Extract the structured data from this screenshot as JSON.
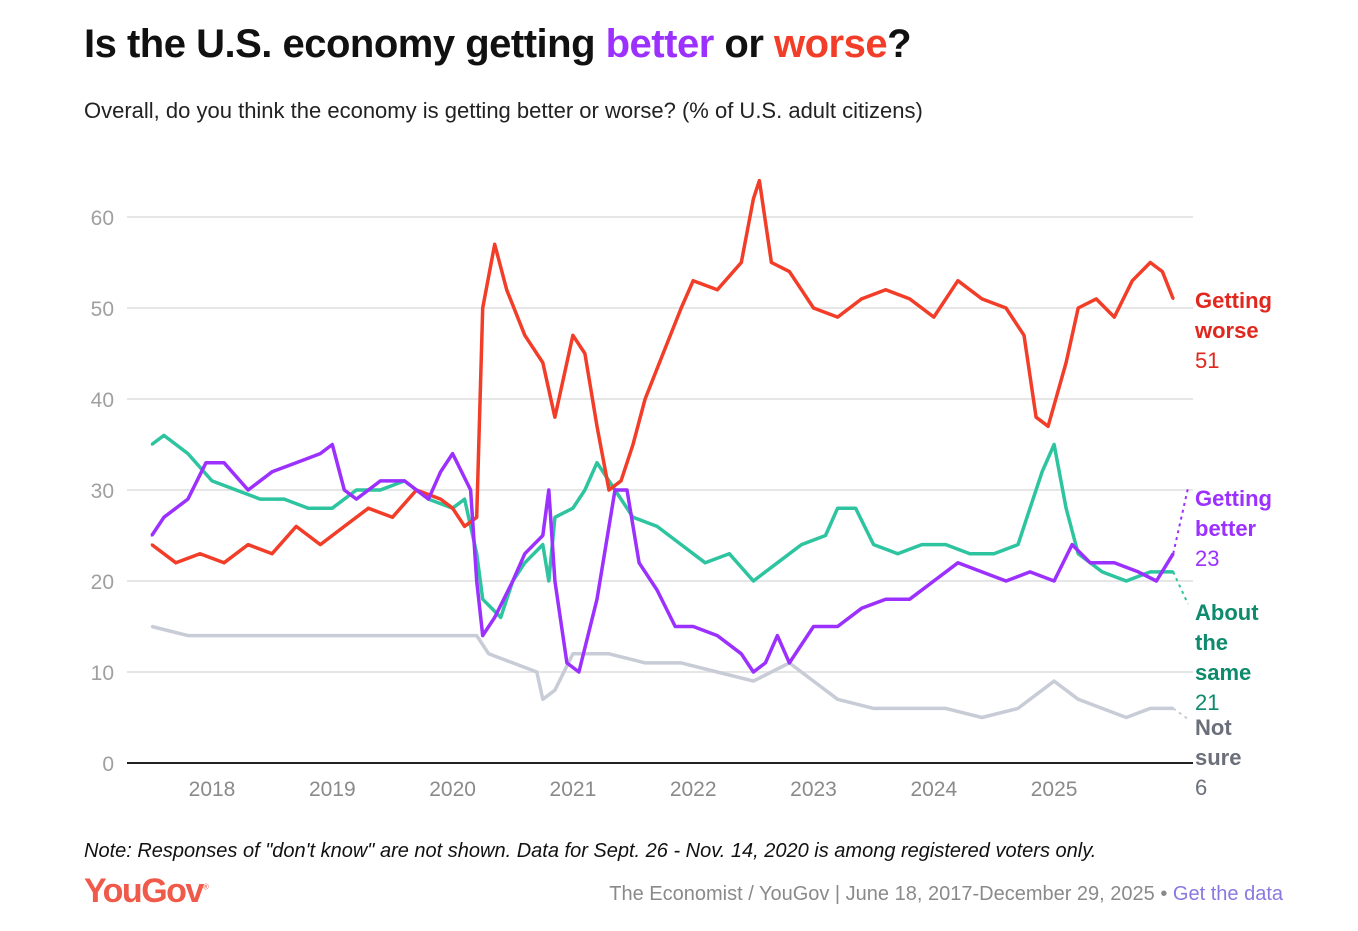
{
  "title": {
    "prefix": "Is the U.S. economy getting ",
    "better": "better",
    "middle": " or ",
    "worse": "worse",
    "suffix": "?"
  },
  "subtitle": "Overall, do you think the economy is getting better or worse? (% of U.S. adult citizens)",
  "note": "Note: Responses of \"don't know\" are not shown. Data for Sept. 26 - Nov. 14, 2020 is among registered voters only.",
  "logo": "YouGov",
  "logo_mark": "®",
  "source": "The Economist / YouGov | June 18, 2017-December 29, 2025",
  "separator": " • ",
  "get_data": "Get the data",
  "chart_data": {
    "type": "line",
    "title": "Is the U.S. economy getting better or worse?",
    "xlabel": "",
    "ylabel": "% of U.S. adult citizens",
    "xlim": [
      2017.46,
      2026.0
    ],
    "ylim": [
      0,
      60
    ],
    "yticks": [
      0,
      10,
      20,
      30,
      40,
      50,
      60
    ],
    "ytick_labels": [
      "0",
      "10",
      "20",
      "30",
      "40",
      "50",
      "60"
    ],
    "xticks": [
      2018,
      2019,
      2020,
      2021,
      2022,
      2023,
      2024,
      2025
    ],
    "xtick_labels": [
      "2018",
      "2019",
      "2020",
      "2021",
      "2022",
      "2023",
      "2024",
      "2025"
    ],
    "grid": true,
    "legend": "right-end-labels",
    "series": [
      {
        "name": "Getting worse",
        "label_line1": "Getting",
        "label_line2": "worse",
        "last": "51",
        "color": "#f23d28",
        "label_color": "#e0281e",
        "x": [
          2017.5,
          2017.7,
          2017.9,
          2018.1,
          2018.3,
          2018.5,
          2018.7,
          2018.9,
          2019.1,
          2019.3,
          2019.5,
          2019.7,
          2019.9,
          2020.0,
          2020.1,
          2020.2,
          2020.25,
          2020.35,
          2020.45,
          2020.6,
          2020.75,
          2020.85,
          2021.0,
          2021.1,
          2021.2,
          2021.3,
          2021.4,
          2021.5,
          2021.6,
          2021.75,
          2021.9,
          2022.0,
          2022.2,
          2022.4,
          2022.5,
          2022.55,
          2022.65,
          2022.8,
          2022.9,
          2023.0,
          2023.2,
          2023.4,
          2023.6,
          2023.8,
          2024.0,
          2024.2,
          2024.4,
          2024.6,
          2024.75,
          2024.85,
          2024.95,
          2025.1,
          2025.2,
          2025.35,
          2025.5,
          2025.65,
          2025.8,
          2025.9,
          2025.99
        ],
        "y": [
          24,
          22,
          23,
          22,
          24,
          23,
          26,
          24,
          26,
          28,
          27,
          30,
          29,
          28,
          26,
          27,
          50,
          57,
          52,
          47,
          44,
          38,
          47,
          45,
          37,
          30,
          31,
          35,
          40,
          45,
          50,
          53,
          52,
          55,
          62,
          64,
          55,
          54,
          52,
          50,
          49,
          51,
          52,
          51,
          49,
          53,
          51,
          50,
          47,
          38,
          37,
          44,
          50,
          51,
          49,
          53,
          55,
          54,
          51
        ]
      },
      {
        "name": "Getting better",
        "label_line1": "Getting",
        "label_line2": "better",
        "last": "23",
        "color": "#9b30ff",
        "label_color": "#9b30ff",
        "x": [
          2017.5,
          2017.6,
          2017.8,
          2017.95,
          2018.1,
          2018.3,
          2018.5,
          2018.7,
          2018.9,
          2019.0,
          2019.1,
          2019.2,
          2019.4,
          2019.6,
          2019.8,
          2019.9,
          2020.0,
          2020.15,
          2020.2,
          2020.25,
          2020.35,
          2020.5,
          2020.6,
          2020.75,
          2020.8,
          2020.85,
          2020.95,
          2021.05,
          2021.2,
          2021.35,
          2021.45,
          2021.55,
          2021.7,
          2021.85,
          2022.0,
          2022.2,
          2022.4,
          2022.5,
          2022.6,
          2022.7,
          2022.8,
          2023.0,
          2023.2,
          2023.4,
          2023.6,
          2023.8,
          2024.0,
          2024.2,
          2024.4,
          2024.6,
          2024.8,
          2025.0,
          2025.15,
          2025.3,
          2025.5,
          2025.7,
          2025.85,
          2025.99
        ],
        "y": [
          25,
          27,
          29,
          33,
          33,
          30,
          32,
          33,
          34,
          35,
          30,
          29,
          31,
          31,
          29,
          32,
          34,
          30,
          20,
          14,
          16,
          20,
          23,
          25,
          30,
          20,
          11,
          10,
          18,
          30,
          30,
          22,
          19,
          15,
          15,
          14,
          12,
          10,
          11,
          14,
          11,
          15,
          15,
          17,
          18,
          18,
          20,
          22,
          21,
          20,
          21,
          20,
          24,
          22,
          22,
          21,
          20,
          23
        ]
      },
      {
        "name": "About the same",
        "label_line1": "About",
        "label_line2": "the",
        "label_line3": "same",
        "last": "21",
        "color": "#2ec4a0",
        "label_color": "#0e8a6c",
        "x": [
          2017.5,
          2017.6,
          2017.8,
          2018.0,
          2018.2,
          2018.4,
          2018.6,
          2018.8,
          2019.0,
          2019.2,
          2019.4,
          2019.6,
          2019.8,
          2020.0,
          2020.1,
          2020.2,
          2020.25,
          2020.4,
          2020.5,
          2020.6,
          2020.75,
          2020.8,
          2020.85,
          2021.0,
          2021.1,
          2021.2,
          2021.35,
          2021.5,
          2021.7,
          2021.9,
          2022.1,
          2022.3,
          2022.5,
          2022.7,
          2022.9,
          2023.1,
          2023.2,
          2023.35,
          2023.5,
          2023.7,
          2023.9,
          2024.1,
          2024.3,
          2024.5,
          2024.7,
          2024.8,
          2024.9,
          2025.0,
          2025.1,
          2025.2,
          2025.4,
          2025.6,
          2025.8,
          2025.99
        ],
        "y": [
          35,
          36,
          34,
          31,
          30,
          29,
          29,
          28,
          28,
          30,
          30,
          31,
          29,
          28,
          29,
          23,
          18,
          16,
          20,
          22,
          24,
          20,
          27,
          28,
          30,
          33,
          30,
          27,
          26,
          24,
          22,
          23,
          20,
          22,
          24,
          25,
          28,
          28,
          24,
          23,
          24,
          24,
          23,
          23,
          24,
          28,
          32,
          35,
          28,
          23,
          21,
          20,
          21,
          21
        ]
      },
      {
        "name": "Not sure",
        "label_line1": "Not",
        "label_line2": "sure",
        "last": "6",
        "color": "#c8ccd6",
        "label_color": "#6b6f7a",
        "x": [
          2017.5,
          2017.8,
          2018.1,
          2018.4,
          2018.7,
          2019.0,
          2019.3,
          2019.6,
          2019.9,
          2020.2,
          2020.3,
          2020.5,
          2020.7,
          2020.75,
          2020.85,
          2021.0,
          2021.3,
          2021.6,
          2021.9,
          2022.2,
          2022.5,
          2022.8,
          2023.0,
          2023.2,
          2023.5,
          2023.8,
          2024.1,
          2024.4,
          2024.7,
          2024.9,
          2025.0,
          2025.2,
          2025.4,
          2025.6,
          2025.8,
          2025.99
        ],
        "y": [
          15,
          14,
          14,
          14,
          14,
          14,
          14,
          14,
          14,
          14,
          12,
          11,
          10,
          7,
          8,
          12,
          12,
          11,
          11,
          10,
          9,
          11,
          9,
          7,
          6,
          6,
          6,
          5,
          6,
          8,
          9,
          7,
          6,
          5,
          6,
          6
        ]
      }
    ]
  }
}
